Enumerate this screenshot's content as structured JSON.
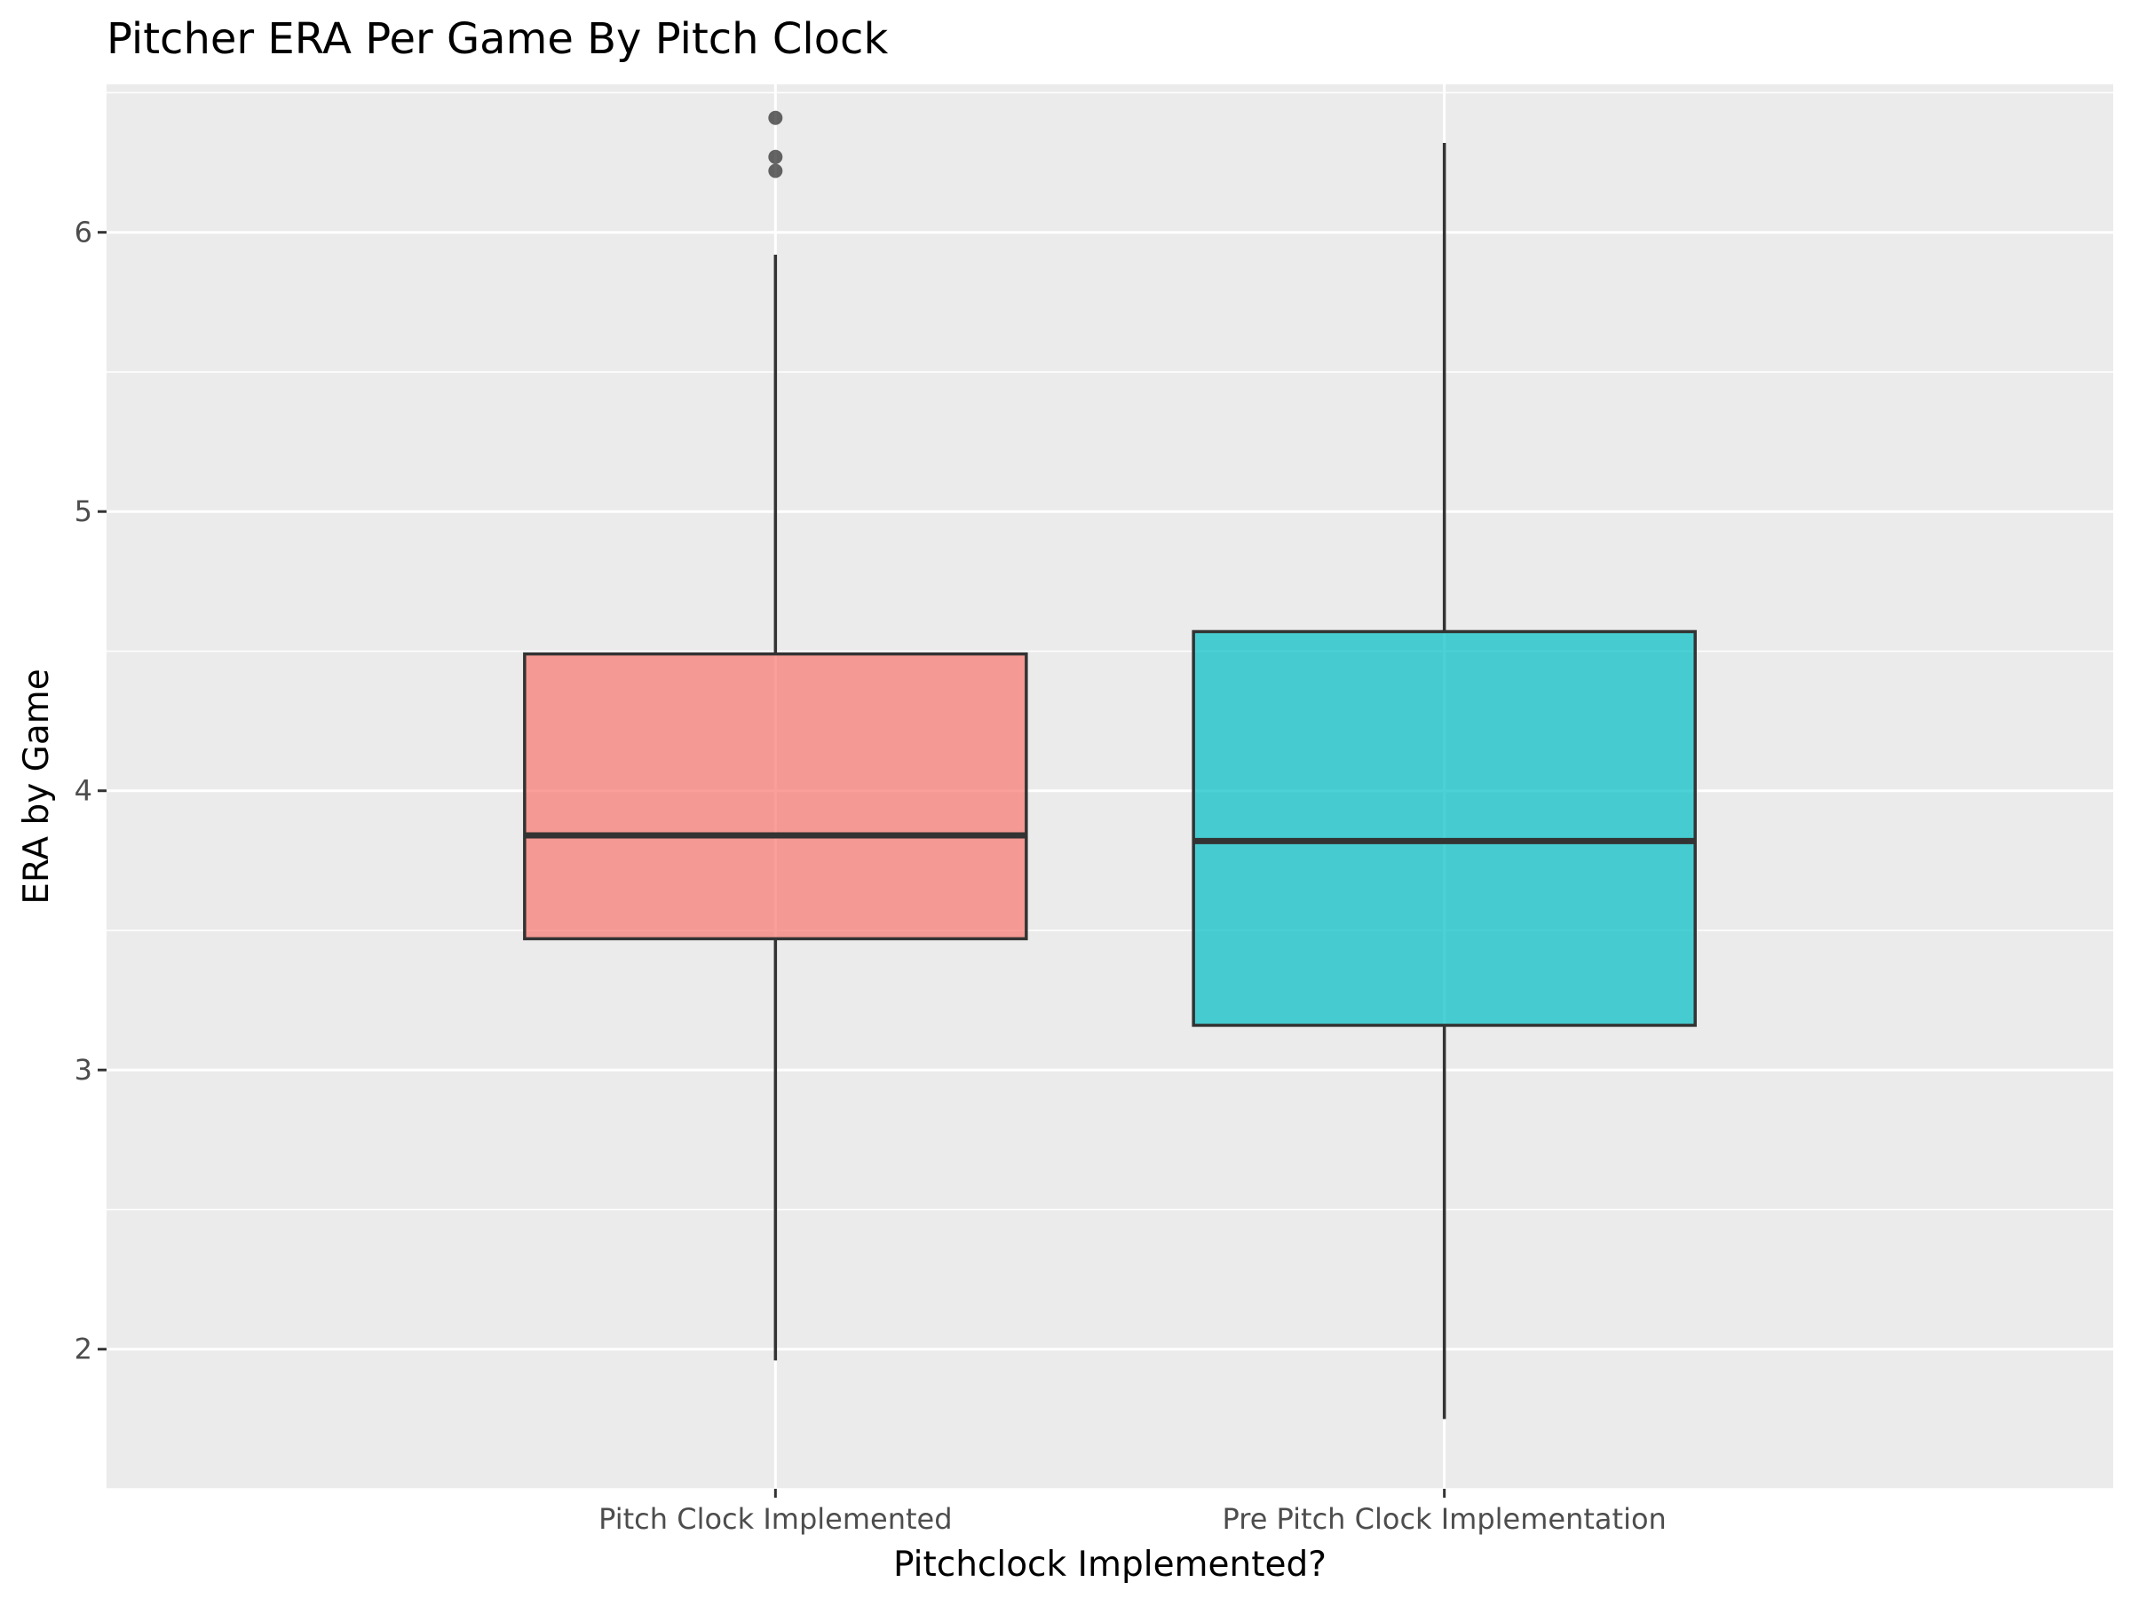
{
  "chart_data": {
    "type": "boxplot",
    "title": "Pitcher ERA Per Game By Pitch Clock",
    "xlabel": "Pitchclock Implemented?",
    "ylabel": "ERA by Game",
    "ylim": [
      1.5,
      6.53
    ],
    "y_ticks": [
      2,
      3,
      4,
      5,
      6
    ],
    "grid": true,
    "categories": [
      "Pitch Clock Implemented",
      "Pre Pitch Clock Implementation"
    ],
    "boxes": [
      {
        "category": "Pitch Clock Implemented",
        "whisker_low": 1.96,
        "q1": 3.47,
        "median": 3.84,
        "q3": 4.49,
        "whisker_high": 5.92,
        "outliers": [
          6.22,
          6.27,
          6.41
        ],
        "color": "#f8766d"
      },
      {
        "category": "Pre Pitch Clock Implementation",
        "whisker_low": 1.75,
        "q1": 3.16,
        "median": 3.82,
        "q3": 4.57,
        "whisker_high": 6.32,
        "outliers": [],
        "color": "#00bfc4"
      }
    ]
  }
}
